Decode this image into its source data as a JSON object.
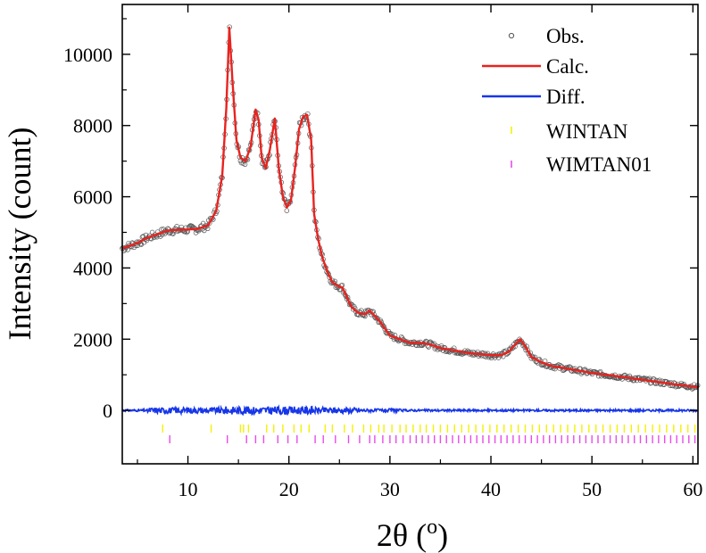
{
  "chart_data": {
    "type": "line",
    "xlabel": "2θ (",
    "xlabel_unit": "o",
    "xlabel_close": ")",
    "ylabel": "Intensity (count)",
    "xlim": [
      3.5,
      60.5
    ],
    "ylim": [
      -1500,
      11400
    ],
    "x_ticks": [
      10,
      20,
      30,
      40,
      50,
      60
    ],
    "y_ticks": [
      0,
      2000,
      4000,
      6000,
      8000,
      10000
    ],
    "x_tick_labels": [
      "10",
      "20",
      "30",
      "40",
      "50",
      "60"
    ],
    "y_tick_labels": [
      "0",
      "2000",
      "4000",
      "6000",
      "8000",
      "10000"
    ],
    "legend_position": "top-right",
    "legend": [
      {
        "key": "obs",
        "label": "Obs."
      },
      {
        "key": "calc",
        "label": "Calc."
      },
      {
        "key": "diff",
        "label": "Diff."
      },
      {
        "key": "wintan",
        "label": "WINTAN"
      },
      {
        "key": "wimtan01",
        "label": "WIMTAN01"
      }
    ],
    "colors": {
      "obs": "#555555",
      "calc": "#e8231f",
      "diff": "#1736e8",
      "wintan": "#f2f200",
      "wimtan01": "#e84ce8"
    },
    "profile": {
      "x": [
        3.5,
        5,
        6,
        7,
        8,
        9,
        10,
        11,
        12,
        12.8,
        13.4,
        13.8,
        14.1,
        14.4,
        14.8,
        15.2,
        15.7,
        16.2,
        16.7,
        17.0,
        17.3,
        17.7,
        18.1,
        18.6,
        19.0,
        19.4,
        19.8,
        20.2,
        20.6,
        21.0,
        21.4,
        21.8,
        22.2,
        22.5,
        22.9,
        23.3,
        23.8,
        24.3,
        24.8,
        25.3,
        25.7,
        26.2,
        26.8,
        27.5,
        28.0,
        28.5,
        29.0,
        29.5,
        30.0,
        31,
        32,
        33,
        34,
        35,
        36,
        37,
        38,
        39,
        40,
        41,
        41.8,
        42.4,
        42.9,
        43.4,
        44.0,
        45,
        46,
        48,
        50,
        52,
        54,
        56,
        58,
        60.5
      ],
      "y": [
        4550,
        4700,
        4850,
        4950,
        5050,
        5070,
        5080,
        5100,
        5200,
        5600,
        6600,
        8500,
        10750,
        9300,
        7600,
        7100,
        7000,
        7400,
        8450,
        8150,
        7100,
        6800,
        7300,
        8200,
        6800,
        6000,
        5700,
        5900,
        6800,
        7900,
        8250,
        8300,
        7600,
        5500,
        4800,
        4300,
        3900,
        3600,
        3500,
        3450,
        3200,
        2900,
        2750,
        2700,
        2800,
        2650,
        2500,
        2300,
        2100,
        2000,
        1900,
        1900,
        1850,
        1750,
        1700,
        1650,
        1600,
        1580,
        1550,
        1550,
        1650,
        1850,
        2000,
        1800,
        1500,
        1350,
        1250,
        1150,
        1050,
        980,
        900,
        820,
        740,
        650
      ]
    },
    "wintan_ticks": [
      7.5,
      12.3,
      15.2,
      15.5,
      16.0,
      17.8,
      18.5,
      19.4,
      20.5,
      21.2,
      22.0,
      23.6,
      24.3,
      25.5,
      26.3,
      27.4,
      28.1,
      28.9,
      29.4,
      30.2,
      31.0,
      31.6,
      32.3,
      33.0,
      33.6,
      34.3,
      35.0,
      35.7,
      36.4,
      37.1,
      37.8,
      38.5,
      39.2,
      39.9,
      40.6,
      41.3,
      42.0,
      42.7,
      43.4,
      44.1,
      44.8,
      45.5,
      46.2,
      46.9,
      47.6,
      48.3,
      49.0,
      49.7,
      50.4,
      51.1,
      51.8,
      52.5,
      53.2,
      53.9,
      54.6,
      55.3,
      56.0,
      56.7,
      57.4,
      58.1,
      58.8,
      59.5,
      60.2
    ],
    "wimtan01_ticks": [
      8.2,
      13.9,
      15.8,
      16.7,
      17.5,
      18.9,
      19.9,
      20.8,
      22.6,
      23.4,
      24.6,
      25.9,
      27.0,
      28.0,
      28.5,
      29.3,
      30.0,
      30.6,
      31.3,
      32.0,
      32.6,
      33.2,
      33.8,
      34.4,
      35.0,
      35.6,
      36.2,
      36.8,
      37.4,
      38.0,
      38.6,
      39.2,
      39.8,
      40.4,
      41.0,
      41.6,
      42.2,
      42.8,
      43.4,
      44.0,
      44.6,
      45.2,
      45.8,
      46.4,
      47.0,
      47.6,
      48.2,
      48.8,
      49.4,
      50.0,
      50.6,
      51.2,
      51.8,
      52.4,
      53.0,
      53.6,
      54.2,
      54.8,
      55.4,
      56.0,
      56.6,
      57.2,
      57.8,
      58.4,
      59.0,
      59.6,
      60.2
    ]
  }
}
